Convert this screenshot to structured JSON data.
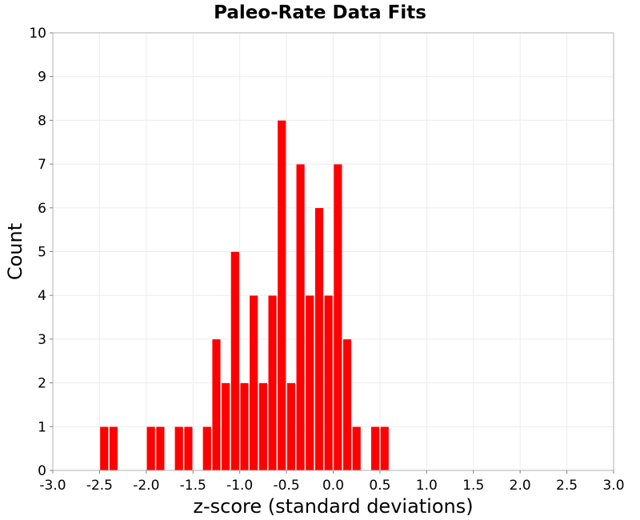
{
  "chart_data": {
    "type": "bar",
    "title": "Paleo-Rate Data Fits",
    "xlabel": "z-score (standard deviations)",
    "ylabel": "Count",
    "xlim": [
      -3.0,
      3.0
    ],
    "ylim": [
      0,
      10
    ],
    "x_ticks": [
      "-3.0",
      "-2.5",
      "-2.0",
      "-1.5",
      "-1.0",
      "-0.5",
      "0.0",
      "0.5",
      "1.0",
      "1.5",
      "2.0",
      "2.5",
      "3.0"
    ],
    "y_ticks": [
      "0",
      "1",
      "2",
      "3",
      "4",
      "5",
      "6",
      "7",
      "8",
      "9",
      "10"
    ],
    "bin_width": 0.1,
    "grid": true,
    "bar_color": "#ff0000",
    "bins": [
      {
        "x0": -2.5,
        "count": 1
      },
      {
        "x0": -2.4,
        "count": 1
      },
      {
        "x0": -2.0,
        "count": 1
      },
      {
        "x0": -1.9,
        "count": 1
      },
      {
        "x0": -1.7,
        "count": 1
      },
      {
        "x0": -1.6,
        "count": 1
      },
      {
        "x0": -1.4,
        "count": 1
      },
      {
        "x0": -1.3,
        "count": 3
      },
      {
        "x0": -1.2,
        "count": 2
      },
      {
        "x0": -1.1,
        "count": 5
      },
      {
        "x0": -1.0,
        "count": 2
      },
      {
        "x0": -0.9,
        "count": 4
      },
      {
        "x0": -0.8,
        "count": 2
      },
      {
        "x0": -0.7,
        "count": 4
      },
      {
        "x0": -0.6,
        "count": 8
      },
      {
        "x0": -0.5,
        "count": 2
      },
      {
        "x0": -0.4,
        "count": 7
      },
      {
        "x0": -0.3,
        "count": 4
      },
      {
        "x0": -0.2,
        "count": 6
      },
      {
        "x0": -0.1,
        "count": 4
      },
      {
        "x0": 0.0,
        "count": 7
      },
      {
        "x0": 0.1,
        "count": 3
      },
      {
        "x0": 0.2,
        "count": 1
      },
      {
        "x0": 0.4,
        "count": 1
      },
      {
        "x0": 0.5,
        "count": 1
      }
    ]
  }
}
